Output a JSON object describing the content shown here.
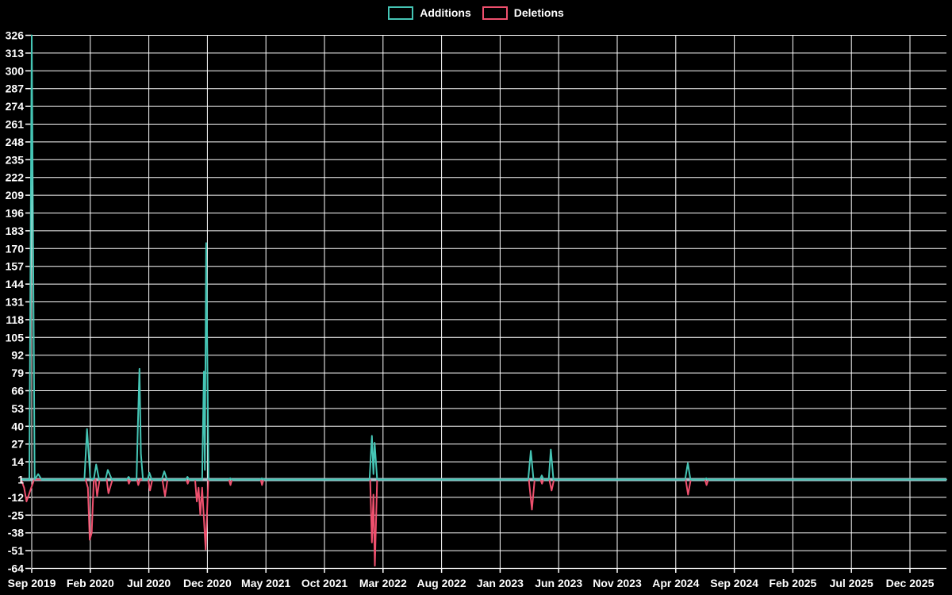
{
  "page": {
    "background_color": "#000000",
    "grid_color": "#ffffff",
    "baseline_overlay_color": "#a9c3cb"
  },
  "legend": {
    "items": [
      {
        "label": "Additions",
        "color": "#45c5b5"
      },
      {
        "label": "Deletions",
        "color": "#ef506e"
      }
    ]
  },
  "chart_data": {
    "type": "line",
    "title": "",
    "xlabel": "",
    "ylabel": "",
    "grid": true,
    "legend_position": "top-center",
    "x_unit": "months since Sep 2019",
    "x_tick_labels": [
      "Sep 2019",
      "Feb 2020",
      "Jul 2020",
      "Dec 2020",
      "May 2021",
      "Oct 2021",
      "Mar 2022",
      "Aug 2022",
      "Jan 2023",
      "Jun 2023",
      "Nov 2023",
      "Apr 2024",
      "Sep 2024",
      "Feb 2025",
      "Jul 2025",
      "Dec 2025"
    ],
    "x_tick_positions_months": [
      0,
      5,
      10,
      15,
      20,
      25,
      30,
      35,
      40,
      45,
      50,
      55,
      60,
      65,
      70,
      75
    ],
    "x_range_months": [
      -0.9,
      78.1
    ],
    "y_tick_labels": [
      326,
      313,
      300,
      287,
      274,
      261,
      248,
      235,
      222,
      209,
      196,
      183,
      170,
      157,
      144,
      131,
      118,
      105,
      92,
      79,
      66,
      53,
      40,
      27,
      14,
      1,
      -12,
      -25,
      -38,
      -51,
      -64
    ],
    "ylim": [
      -64,
      326
    ],
    "baseline_value": 1,
    "series": [
      {
        "name": "Additions",
        "color": "#45c5b5",
        "points": [
          [
            -0.9,
            1
          ],
          [
            -0.2,
            1
          ],
          [
            0,
            326
          ],
          [
            0.25,
            1
          ],
          [
            0.55,
            5
          ],
          [
            0.85,
            1
          ],
          [
            4.5,
            1
          ],
          [
            4.72,
            38
          ],
          [
            5.0,
            2
          ],
          [
            5.3,
            1
          ],
          [
            5.5,
            12
          ],
          [
            5.75,
            1
          ],
          [
            6.3,
            1
          ],
          [
            6.5,
            8
          ],
          [
            6.85,
            1
          ],
          [
            8.1,
            1
          ],
          [
            8.27,
            3
          ],
          [
            8.45,
            1
          ],
          [
            8.95,
            1
          ],
          [
            9.08,
            45
          ],
          [
            9.2,
            82
          ],
          [
            9.32,
            20
          ],
          [
            9.5,
            1
          ],
          [
            9.9,
            1
          ],
          [
            10.05,
            6
          ],
          [
            10.25,
            1
          ],
          [
            11.1,
            1
          ],
          [
            11.32,
            7
          ],
          [
            11.55,
            1
          ],
          [
            13.15,
            1
          ],
          [
            13.3,
            3
          ],
          [
            13.45,
            1
          ],
          [
            14.55,
            1
          ],
          [
            14.7,
            80
          ],
          [
            14.78,
            8
          ],
          [
            14.9,
            174
          ],
          [
            15.1,
            1
          ],
          [
            16.8,
            1
          ],
          [
            16.95,
            2
          ],
          [
            17.1,
            1
          ],
          [
            19.5,
            1
          ],
          [
            19.65,
            2
          ],
          [
            19.8,
            1
          ],
          [
            28.85,
            1
          ],
          [
            29.05,
            33
          ],
          [
            29.18,
            5
          ],
          [
            29.28,
            28
          ],
          [
            29.5,
            1
          ],
          [
            42.4,
            1
          ],
          [
            42.62,
            22
          ],
          [
            42.85,
            1
          ],
          [
            43.4,
            1
          ],
          [
            43.56,
            4
          ],
          [
            43.72,
            1
          ],
          [
            44.15,
            1
          ],
          [
            44.33,
            23
          ],
          [
            44.55,
            1
          ],
          [
            55.8,
            1
          ],
          [
            56.03,
            13
          ],
          [
            56.25,
            1
          ],
          [
            57.45,
            1
          ],
          [
            57.6,
            2
          ],
          [
            57.75,
            1
          ],
          [
            78.1,
            1
          ]
        ]
      },
      {
        "name": "Deletions",
        "color": "#ef506e",
        "points": [
          [
            -0.9,
            1
          ],
          [
            -0.65,
            -5
          ],
          [
            -0.45,
            -15
          ],
          [
            0.2,
            1
          ],
          [
            4.6,
            1
          ],
          [
            4.8,
            -5
          ],
          [
            4.95,
            -43
          ],
          [
            5.12,
            -38
          ],
          [
            5.3,
            1
          ],
          [
            5.45,
            1
          ],
          [
            5.58,
            -11
          ],
          [
            5.8,
            1
          ],
          [
            6.4,
            1
          ],
          [
            6.55,
            -9
          ],
          [
            6.9,
            1
          ],
          [
            8.2,
            1
          ],
          [
            8.3,
            -2
          ],
          [
            8.45,
            1
          ],
          [
            9.0,
            1
          ],
          [
            9.1,
            -3
          ],
          [
            9.25,
            1
          ],
          [
            9.95,
            1
          ],
          [
            10.1,
            -7
          ],
          [
            10.3,
            1
          ],
          [
            11.15,
            1
          ],
          [
            11.38,
            -11
          ],
          [
            11.6,
            1
          ],
          [
            13.2,
            1
          ],
          [
            13.32,
            -2
          ],
          [
            13.45,
            1
          ],
          [
            13.95,
            1
          ],
          [
            14.1,
            -15
          ],
          [
            14.25,
            -5
          ],
          [
            14.4,
            -25
          ],
          [
            14.55,
            -5
          ],
          [
            14.85,
            -50
          ],
          [
            15.08,
            1
          ],
          [
            16.85,
            1
          ],
          [
            16.97,
            -3
          ],
          [
            17.1,
            1
          ],
          [
            19.55,
            1
          ],
          [
            19.67,
            -3
          ],
          [
            19.8,
            1
          ],
          [
            28.9,
            1
          ],
          [
            29.05,
            -45
          ],
          [
            29.18,
            -10
          ],
          [
            29.3,
            -62
          ],
          [
            29.5,
            1
          ],
          [
            42.45,
            1
          ],
          [
            42.72,
            -21
          ],
          [
            42.95,
            1
          ],
          [
            43.45,
            1
          ],
          [
            43.58,
            -2
          ],
          [
            43.7,
            1
          ],
          [
            44.2,
            1
          ],
          [
            44.4,
            -7
          ],
          [
            44.6,
            1
          ],
          [
            55.85,
            1
          ],
          [
            56.05,
            -10
          ],
          [
            56.28,
            1
          ],
          [
            57.5,
            1
          ],
          [
            57.63,
            -3
          ],
          [
            57.78,
            1
          ],
          [
            78.1,
            1
          ]
        ]
      }
    ]
  }
}
